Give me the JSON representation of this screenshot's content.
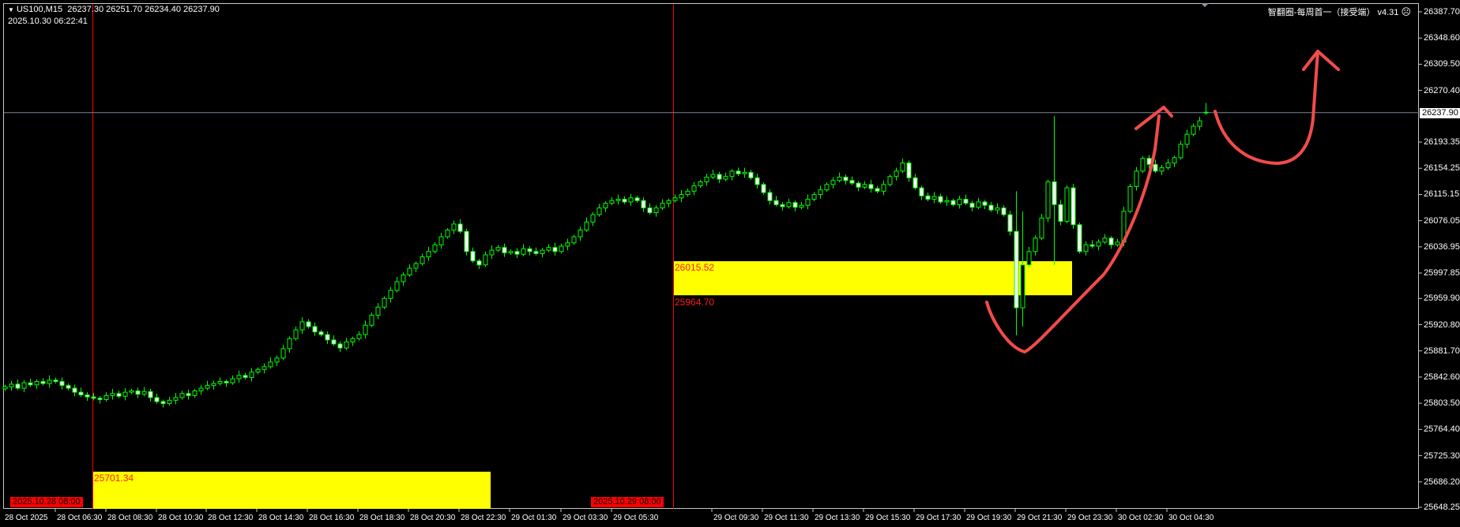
{
  "header": {
    "symbol_tf": "US100,M15",
    "ohlc": "26237.30 26251.70 26234.40 26237.90",
    "server_time": "2025.10.30 06:22:41",
    "indicator_watermark": "智翻圈-每周首一（接受端） v4.31",
    "indicator_status_icon": "sad-face-icon"
  },
  "colors": {
    "background": "#000000",
    "bull_body": "#000000",
    "bear_body": "#ffffff",
    "candle_outline": "#00ff00",
    "zone": "#ffff00",
    "zone_label": "#ff1a1a",
    "vertical_line": "#ff0000",
    "bid_line": "#778899",
    "annotation": "#f24b4b"
  },
  "zones": [
    {
      "top_label": "25701.34",
      "top": 25701.34
    },
    {
      "top_label": "26015.52",
      "bottom_label": "25964.70",
      "top": 26015.52,
      "bottom": 25964.7
    }
  ],
  "vertical_lines": [
    "2025.10.28 08:00",
    "2025.10.29 08:00"
  ],
  "current_price": "26237.90",
  "chart_data": {
    "type": "candlestick",
    "title": "US100,M15",
    "ylim": [
      25648.25,
      26387.7
    ],
    "y_ticks": [
      "26387.70",
      "26348.60",
      "26309.50",
      "26270.40",
      "26193.35",
      "26154.25",
      "26115.15",
      "26076.05",
      "26036.95",
      "25997.85",
      "25959.90",
      "25920.80",
      "25881.70",
      "25842.60",
      "25803.50",
      "25764.40",
      "25725.30",
      "25686.20",
      "25648.25"
    ],
    "x_ticks": [
      "28 Oct 2025",
      "28 Oct 06:30",
      "28 Oct 08:30",
      "28 Oct 10:30",
      "28 Oct 12:30",
      "28 Oct 14:30",
      "28 Oct 16:30",
      "28 Oct 18:30",
      "28 Oct 20:30",
      "28 Oct 22:30",
      "29 Oct 01:30",
      "29 Oct 03:30",
      "29 Oct 05:30",
      "29 Oct 09:30",
      "29 Oct 11:30",
      "29 Oct 13:30",
      "29 Oct 15:30",
      "29 Oct 17:30",
      "29 Oct 19:30",
      "29 Oct 21:30",
      "29 Oct 23:30",
      "30 Oct 02:30",
      "30 Oct 04:30"
    ],
    "close": [
      25828,
      25832,
      25826,
      25834,
      25831,
      25836,
      25833,
      25838,
      25836,
      25830,
      25826,
      25820,
      25816,
      25813,
      25811,
      25809,
      25815,
      25818,
      25814,
      25820,
      25822,
      25817,
      25821,
      25812,
      25806,
      25803,
      25808,
      25812,
      25818,
      25815,
      25822,
      25826,
      25830,
      25833,
      25836,
      25834,
      25840,
      25845,
      25842,
      25850,
      25854,
      25858,
      25865,
      25871,
      25885,
      25900,
      25913,
      25925,
      25918,
      25910,
      25906,
      25898,
      25892,
      25886,
      25895,
      25900,
      25906,
      25920,
      25935,
      25947,
      25960,
      25972,
      25985,
      25995,
      26005,
      26012,
      26022,
      26030,
      26040,
      26052,
      26062,
      26071,
      26060,
      26030,
      26016,
      26010,
      26025,
      26032,
      26036,
      26028,
      26030,
      26026,
      26034,
      26030,
      26027,
      26032,
      26036,
      26030,
      26038,
      26043,
      26052,
      26062,
      26074,
      26085,
      26095,
      26102,
      26106,
      26108,
      26104,
      26110,
      26106,
      26095,
      26088,
      26095,
      26102,
      26106,
      26110,
      26115,
      26120,
      26128,
      26134,
      26141,
      26145,
      26138,
      26142,
      26150,
      26146,
      26148,
      26140,
      26130,
      26118,
      26106,
      26100,
      26097,
      26103,
      26096,
      26099,
      26108,
      26115,
      26122,
      26130,
      26136,
      26141,
      26136,
      26132,
      26126,
      26130,
      26124,
      26120,
      26130,
      26142,
      26150,
      26162,
      26140,
      26125,
      26113,
      26108,
      26112,
      26104,
      26106,
      26100,
      26108,
      26102,
      26096,
      26104,
      26099,
      26092,
      26095,
      26085,
      26060,
      25946,
      26010,
      26030,
      26050,
      26080,
      26134,
      26100,
      26075,
      26125,
      26070,
      26030,
      26040,
      26038,
      26044,
      26050,
      26040,
      26044,
      26090,
      26127,
      26150,
      26169,
      26160,
      26150,
      26155,
      26162,
      26170,
      26190,
      26205,
      26217,
      26225,
      26237.9
    ],
    "wick_extremes": [
      {
        "index": 160,
        "high": 26120,
        "low": 25905
      },
      {
        "index": 161,
        "high": 26090,
        "low": 25918
      },
      {
        "index": 166,
        "high": 26232,
        "low": 26010
      },
      {
        "index": 190,
        "high": 26251.7,
        "low": 26234.4,
        "open": 26237.3
      }
    ]
  }
}
